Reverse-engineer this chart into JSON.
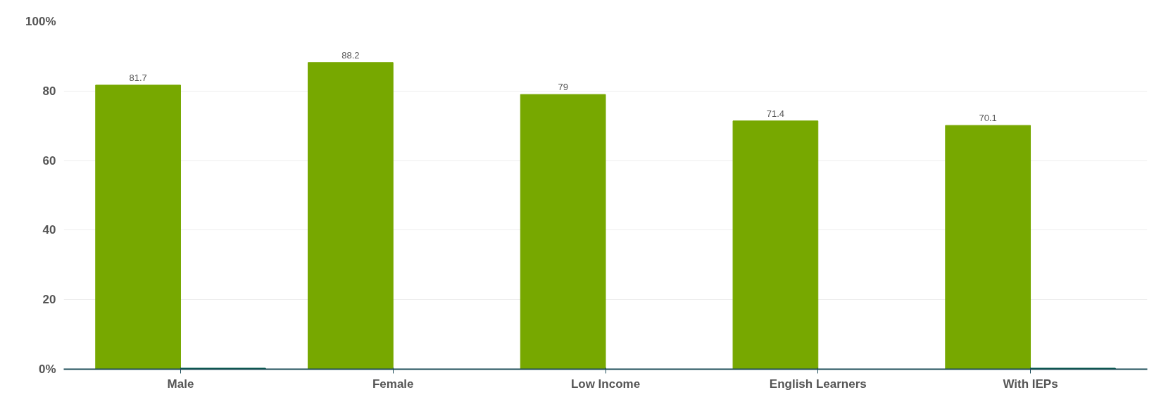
{
  "chart_data": {
    "type": "bar",
    "categories": [
      "Male",
      "Female",
      "Low Income",
      "English Learners",
      "With IEPs"
    ],
    "series": [
      {
        "color": "#77a800",
        "values": [
          81.7,
          88.2,
          79,
          71.4,
          70.1
        ],
        "value_labels": [
          "81.7",
          "88.2",
          "79",
          "71.4",
          "70.1"
        ]
      },
      {
        "color": "#005f4b",
        "values": [
          0.3,
          null,
          null,
          null,
          0.3
        ]
      }
    ],
    "ylim": [
      0,
      100
    ],
    "yticks": [
      {
        "value": 0,
        "label": "0%"
      },
      20,
      40,
      60,
      80,
      {
        "value": 100,
        "label": "100%"
      }
    ],
    "grid": "y"
  }
}
